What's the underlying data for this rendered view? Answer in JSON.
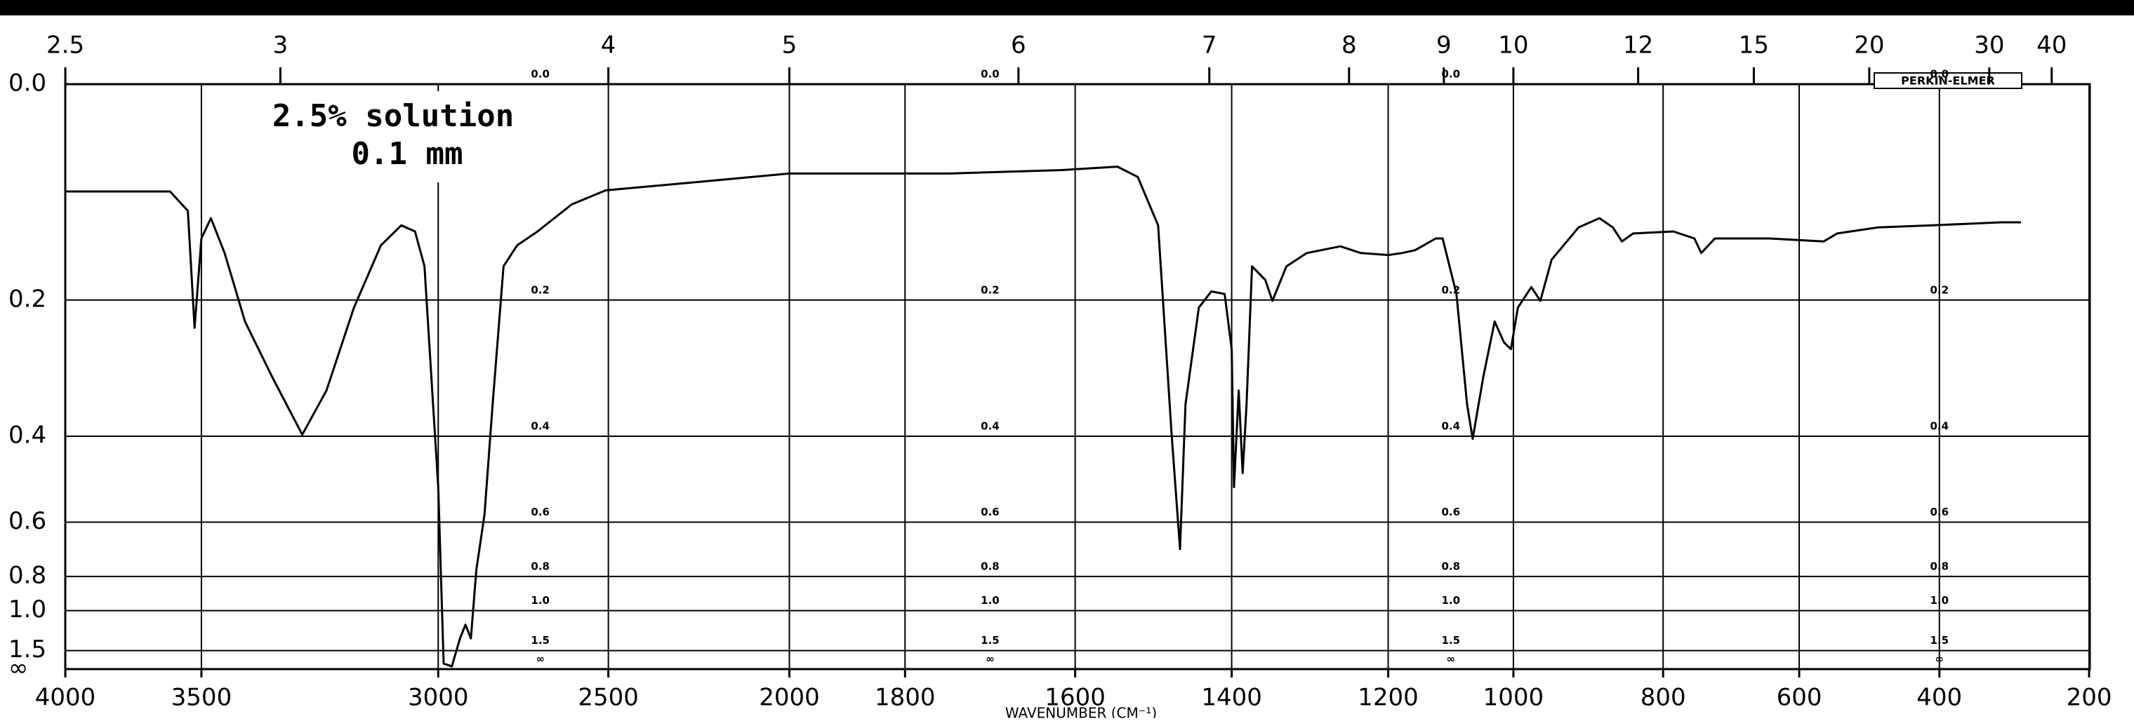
{
  "chart_data": {
    "type": "line",
    "x_label": "WAVENUMBER (CM⁻¹)",
    "annotations": [
      "2.5% solution",
      "0.1 mm"
    ],
    "brand": "PERKIN-ELMER",
    "color": "#000000",
    "grid": true,
    "xticks": [
      4000,
      3500,
      3000,
      2500,
      2000,
      1800,
      1600,
      1400,
      1200,
      1000,
      800,
      600,
      400,
      200
    ],
    "xlim": [
      4000,
      200
    ],
    "x2ticks": [
      2.5,
      3,
      4,
      5,
      6,
      7,
      8,
      9,
      10,
      12,
      15,
      20,
      30,
      40
    ],
    "ylim": [
      0,
      null
    ],
    "yticks": [
      {
        "value": 0,
        "label": "0.0"
      },
      0.2,
      0.4,
      0.6,
      0.8,
      {
        "value": 1,
        "label": "1.0"
      },
      1.5,
      {
        "value": null,
        "label": "∞"
      }
    ],
    "x": [
      4000,
      3615,
      3550,
      3525,
      3500,
      3480,
      3451,
      3408,
      3351,
      3287,
      3236,
      3178,
      3121,
      3078,
      3049,
      3029,
      3011,
      3000,
      2984,
      2960,
      2936,
      2920,
      2904,
      2888,
      2864,
      2840,
      2808,
      2768,
      2708,
      2608,
      2508,
      2304,
      2000,
      1748,
      1616,
      1546,
      1520,
      1494,
      1477,
      1466,
      1459,
      1442,
      1426,
      1409,
      1400,
      1397,
      1391,
      1386,
      1381,
      1374,
      1357,
      1348,
      1330,
      1304,
      1261,
      1235,
      1200,
      1178,
      1157,
      1124,
      1113,
      1091,
      1074,
      1065,
      1048,
      1030,
      1015,
      1004,
      994,
      976,
      964,
      949,
      913,
      885,
      867,
      855,
      840,
      785,
      754,
      744,
      724,
      644,
      565,
      546,
      488,
      410,
      318,
      291
    ],
    "values": [
      0.088,
      0.088,
      0.106,
      0.234,
      0.133,
      0.113,
      0.148,
      0.226,
      0.301,
      0.397,
      0.322,
      0.209,
      0.14,
      0.12,
      0.126,
      0.162,
      0.344,
      0.507,
      2.03,
      2.33,
      1.28,
      1.12,
      1.28,
      0.77,
      0.578,
      0.344,
      0.162,
      0.14,
      0.126,
      0.1,
      0.087,
      0.081,
      0.072,
      0.072,
      0.069,
      0.066,
      0.075,
      0.12,
      0.392,
      0.688,
      0.344,
      0.209,
      0.19,
      0.193,
      0.262,
      0.507,
      0.322,
      0.475,
      0.344,
      0.162,
      0.177,
      0.201,
      0.162,
      0.148,
      0.141,
      0.148,
      0.15,
      0.148,
      0.145,
      0.133,
      0.133,
      0.193,
      0.344,
      0.405,
      0.301,
      0.226,
      0.253,
      0.262,
      0.209,
      0.185,
      0.201,
      0.155,
      0.122,
      0.113,
      0.122,
      0.136,
      0.128,
      0.126,
      0.133,
      0.148,
      0.133,
      0.133,
      0.136,
      0.128,
      0.122,
      0.12,
      0.117,
      0.117
    ]
  }
}
